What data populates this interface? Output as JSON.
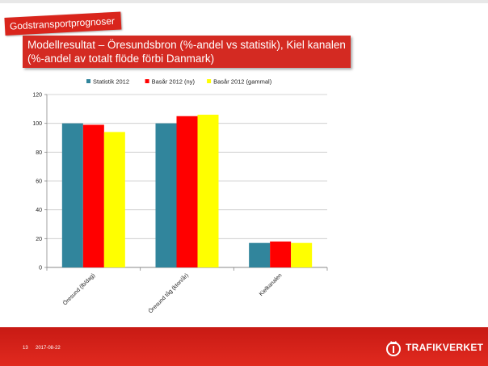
{
  "slide": {
    "section_title": "Godstransportprognoser",
    "title_line1": "Modellresultat – Öresundsbron (%-andel vs statistik), Kiel kanalen",
    "title_line2": "(%-andel av totalt flöde förbi Danmark)",
    "page_number": "13",
    "date": "2017-08-22",
    "logo_text": "TRAFIKVERKET",
    "accent_color": "#d42a22"
  },
  "chart_data": {
    "type": "bar",
    "categories": [
      "Öresund (lb/dag)",
      "Öresund tåg (kton/år)",
      "Kielkanalen"
    ],
    "series": [
      {
        "name": "Statistik 2012",
        "color": "#31859c",
        "values": [
          100,
          100,
          17
        ]
      },
      {
        "name": "Basår 2012 (ny)",
        "color": "#ff0000",
        "values": [
          99,
          105,
          18
        ]
      },
      {
        "name": "Basår 2012 (gammal)",
        "color": "#ffff00",
        "values": [
          94,
          106,
          17
        ]
      }
    ],
    "yticks": [
      0,
      20,
      40,
      60,
      80,
      100,
      120
    ],
    "ylim": [
      0,
      120
    ],
    "grid": true,
    "legend_position": "top"
  }
}
